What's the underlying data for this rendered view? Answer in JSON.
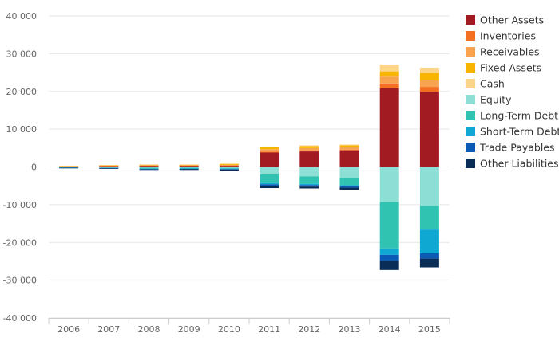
{
  "chart_data": {
    "type": "bar",
    "stacked": true,
    "categories": [
      "2006",
      "2007",
      "2008",
      "2009",
      "2010",
      "2011",
      "2012",
      "2013",
      "2014",
      "2015"
    ],
    "ylim": [
      -40000,
      40000
    ],
    "yticks": [
      40000,
      30000,
      20000,
      10000,
      0,
      -10000,
      -20000,
      -30000,
      -40000
    ],
    "ytick_labels": [
      "40 000",
      "30 000",
      "20 000",
      "10 000",
      "0",
      "-10 000",
      "-20 000",
      "-30 000",
      "-40 000"
    ],
    "grid": true,
    "legend_position": "right",
    "series": [
      {
        "name": "Other Assets",
        "color": "#a31b22",
        "values": [
          150,
          250,
          300,
          300,
          300,
          3800,
          4100,
          4400,
          20800,
          19900
        ]
      },
      {
        "name": "Inventories",
        "color": "#f36f21",
        "values": [
          50,
          50,
          80,
          80,
          100,
          200,
          200,
          200,
          1300,
          1300
        ]
      },
      {
        "name": "Receivables",
        "color": "#f7a350",
        "values": [
          50,
          80,
          100,
          100,
          150,
          700,
          700,
          700,
          1800,
          1700
        ]
      },
      {
        "name": "Fixed Assets",
        "color": "#f8b500",
        "values": [
          50,
          80,
          100,
          100,
          200,
          600,
          500,
          400,
          1400,
          2000
        ]
      },
      {
        "name": "Cash",
        "color": "#fdd589",
        "values": [
          30,
          50,
          80,
          80,
          150,
          100,
          200,
          200,
          1800,
          1400
        ]
      },
      {
        "name": "Equity",
        "color": "#8ddfd5",
        "values": [
          -100,
          -150,
          -200,
          -200,
          -250,
          -2000,
          -2500,
          -3000,
          -9300,
          -10300
        ]
      },
      {
        "name": "Long-Term Debt",
        "color": "#30c3b2",
        "values": [
          -50,
          -100,
          -250,
          -200,
          -200,
          -2300,
          -2000,
          -1800,
          -12300,
          -6300
        ]
      },
      {
        "name": "Short-Term Debt",
        "color": "#0fa8d2",
        "values": [
          -50,
          -50,
          -100,
          -100,
          -100,
          -300,
          -300,
          -300,
          -1700,
          -6300
        ]
      },
      {
        "name": "Trade Payables",
        "color": "#0b5bb5",
        "values": [
          -50,
          -80,
          -100,
          -100,
          -150,
          -400,
          -400,
          -400,
          -1600,
          -1400
        ]
      },
      {
        "name": "Other Liabilities",
        "color": "#0a2d57",
        "values": [
          -100,
          -120,
          -150,
          -200,
          -300,
          -600,
          -500,
          -600,
          -2400,
          -2300
        ]
      }
    ]
  }
}
